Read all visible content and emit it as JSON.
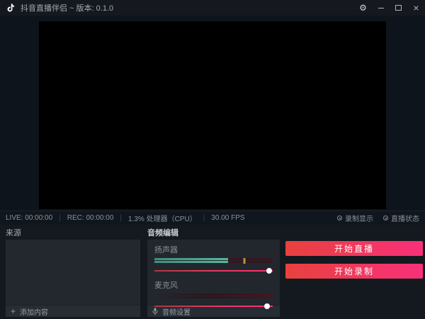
{
  "titlebar": {
    "title": "抖音直播伴侣 ~ 版本: 0.1.0",
    "gear_glyph": "⚙",
    "close_glyph": "×"
  },
  "statusbar": {
    "live": "LIVE: 00:00:00",
    "rec": "REC: 00:00:00",
    "cpu": "1.3% 处理器（CPU）",
    "fps": "30.00 FPS",
    "separator": "|",
    "record_indicator": "录制显示",
    "live_indicator": "直播状态"
  },
  "sources_panel": {
    "title": "来源",
    "add_icon": "+",
    "add_label": "添加内容"
  },
  "audio_panel": {
    "title": "音频编辑",
    "speaker_label": "扬声器",
    "mic_label": "麦克风",
    "settings_label": "音频设置",
    "speaker_meter_percent": 62,
    "speaker_peak_percent": 76,
    "speaker_volume_percent": 97,
    "mic_meter_percent": 0,
    "mic_volume_percent": 95
  },
  "action_panel": {
    "start_live_label": "开始直播",
    "start_record_label": "开始录制"
  },
  "colors": {
    "accent_gradient_start": "#e8413e",
    "accent_gradient_end": "#f8307a",
    "meter_fill_teal": "#57b79d",
    "meter_peak_yellow": "#b2993e",
    "meter_track_maroon": "#3a1520",
    "titlebar_bg": "#15191f",
    "dock_bg": "#14191f"
  }
}
